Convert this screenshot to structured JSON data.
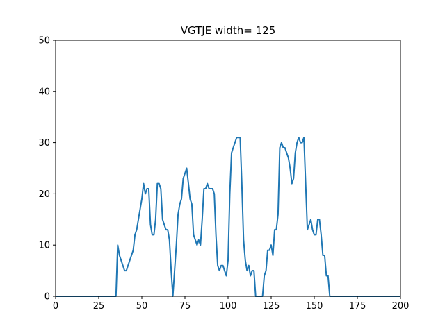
{
  "chart_data": {
    "type": "line",
    "title": "VGTJE width= 125",
    "xlabel": "",
    "ylabel": "",
    "xlim": [
      0,
      200
    ],
    "ylim": [
      0,
      50
    ],
    "xticks": [
      0,
      25,
      50,
      75,
      100,
      125,
      150,
      175,
      200
    ],
    "yticks": [
      0,
      10,
      20,
      30,
      40,
      50
    ],
    "grid": false,
    "series": [
      {
        "color": "#1f77b4",
        "x": [
          0,
          35,
          36,
          37,
          39,
          40,
          41,
          43,
          45,
          46,
          47,
          49,
          50,
          51,
          52,
          53,
          54,
          55,
          56,
          57,
          58,
          59,
          60,
          61,
          62,
          63,
          64,
          65,
          66,
          67,
          68,
          69,
          70,
          71,
          72,
          73,
          74,
          75,
          76,
          77,
          78,
          79,
          80,
          81,
          82,
          83,
          84,
          85,
          86,
          87,
          88,
          89,
          90,
          91,
          92,
          93,
          94,
          95,
          96,
          97,
          98,
          99,
          100,
          101,
          102,
          103,
          104,
          105,
          106,
          107,
          108,
          109,
          110,
          111,
          112,
          113,
          114,
          115,
          116,
          117,
          120,
          121,
          122,
          123,
          124,
          125,
          126,
          127,
          128,
          129,
          130,
          131,
          132,
          133,
          134,
          135,
          136,
          137,
          138,
          139,
          140,
          141,
          142,
          143,
          144,
          145,
          146,
          147,
          148,
          149,
          150,
          151,
          152,
          153,
          154,
          155,
          156,
          157,
          158,
          159,
          160,
          161,
          200
        ],
        "y": [
          0,
          0,
          10,
          8,
          6,
          5,
          5,
          7,
          9,
          12,
          13,
          17,
          19,
          22,
          20,
          21,
          21,
          14,
          12,
          12,
          15,
          22,
          22,
          21,
          15,
          14,
          13,
          13,
          11,
          5,
          0,
          5,
          10,
          16,
          18,
          19,
          23,
          24,
          25,
          22,
          19,
          18,
          12,
          11,
          10,
          11,
          10,
          15,
          21,
          21,
          22,
          21,
          21,
          21,
          20,
          12,
          6,
          5,
          6,
          6,
          5,
          4,
          7,
          20,
          28,
          29,
          30,
          31,
          31,
          31,
          22,
          11,
          7,
          5,
          6,
          4,
          5,
          5,
          0,
          0,
          0,
          4,
          5,
          9,
          9,
          10,
          8,
          13,
          13,
          16,
          29,
          30,
          29,
          29,
          28,
          27,
          25,
          22,
          23,
          28,
          30,
          31,
          30,
          30,
          31,
          22,
          13,
          14,
          15,
          13,
          12,
          12,
          15,
          15,
          12,
          8,
          8,
          4,
          4,
          0,
          0,
          0,
          0
        ]
      }
    ]
  }
}
